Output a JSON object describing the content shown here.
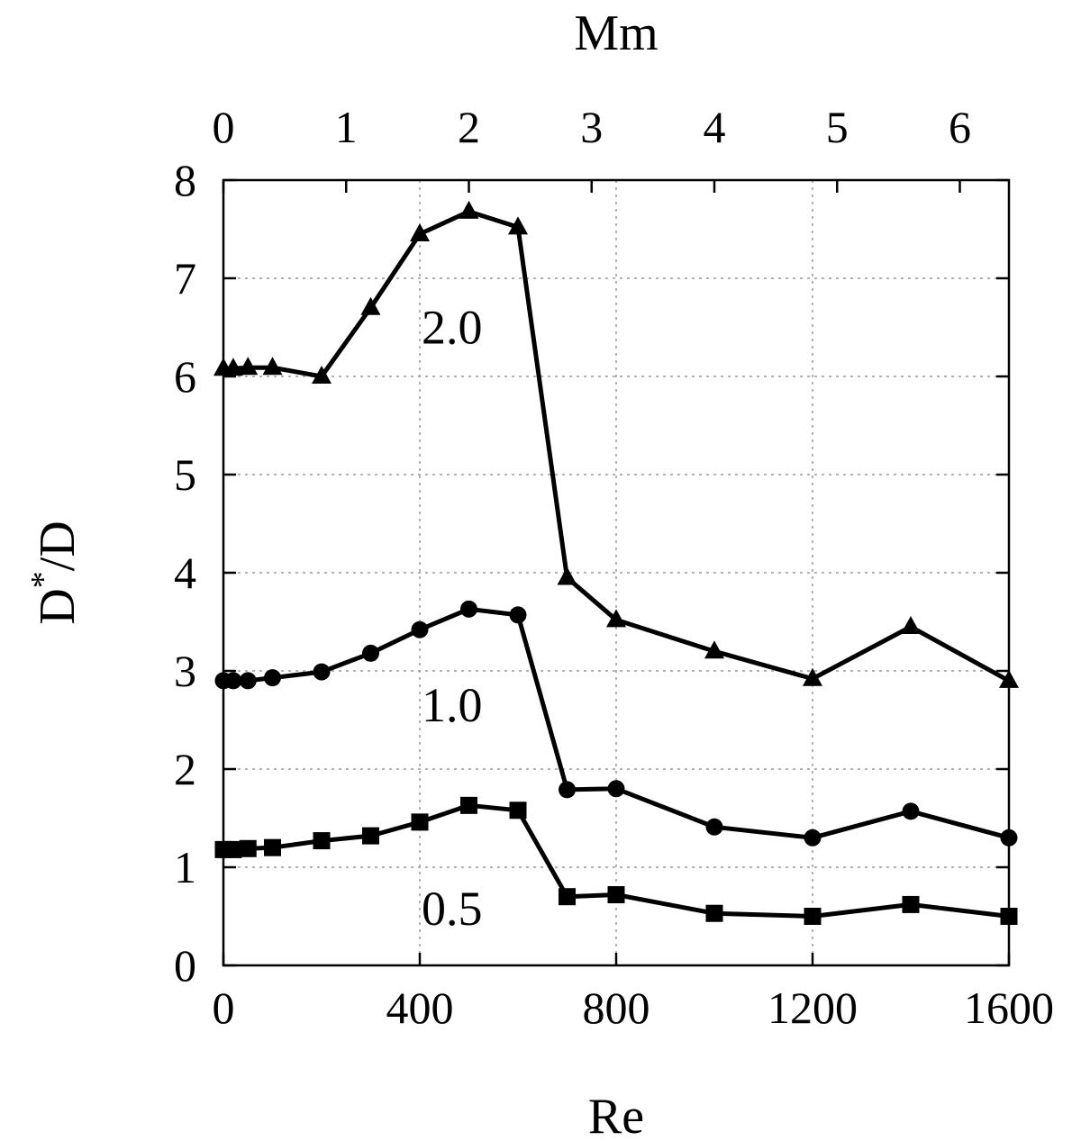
{
  "chart_data": {
    "type": "line",
    "xlabel": "Re",
    "ylabel_main": "D",
    "ylabel_sup": "*",
    "ylabel_tail": "/D",
    "top_xlabel": "Mm",
    "xlim": [
      0,
      1600
    ],
    "ylim": [
      0,
      8
    ],
    "xticks": [
      0,
      400,
      800,
      1200,
      1600
    ],
    "yticks": [
      0,
      1,
      2,
      3,
      4,
      5,
      6,
      7,
      8
    ],
    "top_ticks": [
      0,
      1,
      2,
      3,
      4,
      5,
      6
    ],
    "top_scale_max": 6.4,
    "grid": true,
    "legend": "none",
    "series": [
      {
        "label": "2.0",
        "marker": "triangle",
        "label_at": [
          400,
          6.5
        ],
        "x": [
          0,
          20,
          50,
          100,
          200,
          300,
          400,
          500,
          600,
          700,
          800,
          1000,
          1200,
          1400,
          1600
        ],
        "y": [
          6.08,
          6.08,
          6.09,
          6.09,
          6.0,
          6.7,
          7.45,
          7.68,
          7.52,
          3.95,
          3.52,
          3.2,
          2.92,
          3.45,
          2.9
        ]
      },
      {
        "label": "1.0",
        "marker": "circle",
        "label_at": [
          400,
          2.65
        ],
        "x": [
          0,
          20,
          50,
          100,
          200,
          300,
          400,
          500,
          600,
          700,
          800,
          1000,
          1200,
          1400,
          1600
        ],
        "y": [
          2.9,
          2.9,
          2.9,
          2.93,
          2.99,
          3.18,
          3.42,
          3.63,
          3.57,
          1.79,
          1.8,
          1.41,
          1.3,
          1.57,
          1.3
        ]
      },
      {
        "label": "0.5",
        "marker": "square",
        "label_at": [
          400,
          0.58
        ],
        "x": [
          0,
          20,
          50,
          100,
          200,
          300,
          400,
          500,
          600,
          700,
          800,
          1000,
          1200,
          1400,
          1600
        ],
        "y": [
          1.18,
          1.18,
          1.19,
          1.2,
          1.27,
          1.32,
          1.46,
          1.63,
          1.58,
          0.7,
          0.72,
          0.53,
          0.5,
          0.62,
          0.5
        ]
      }
    ]
  }
}
